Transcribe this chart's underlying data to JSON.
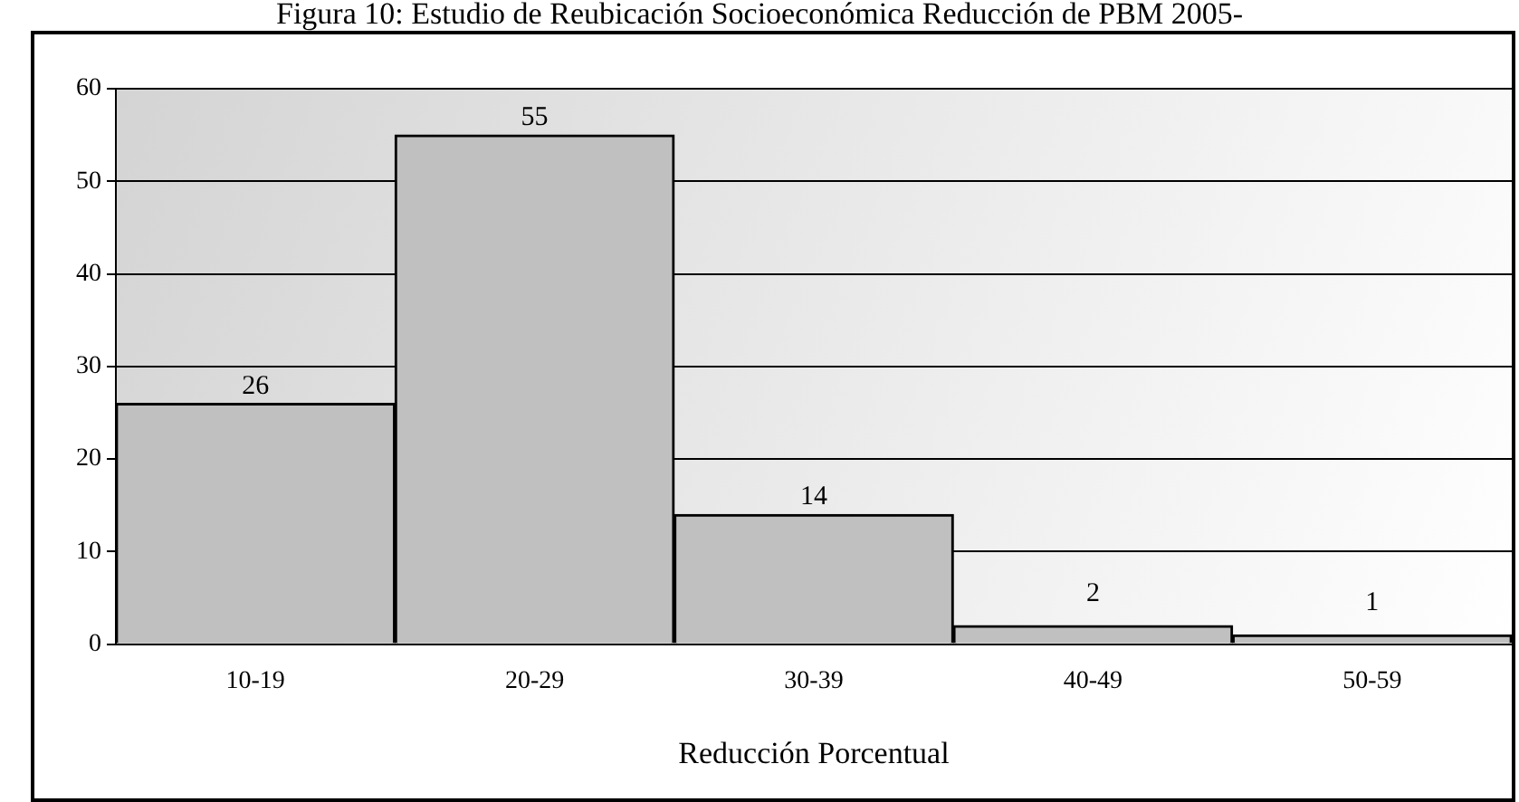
{
  "chart_data": {
    "type": "bar",
    "title": "Figura 10: Estudio de Reubicación Socioeconómica Reducción de PBM 2005-",
    "xlabel": "Reducción Porcentual",
    "categories": [
      "10-19",
      "20-29",
      "30-39",
      "40-49",
      "50-59"
    ],
    "values": [
      26,
      55,
      14,
      2,
      1
    ],
    "color": "#c0c0c0",
    "ylim": [
      0,
      60
    ],
    "yticks": [
      0,
      10,
      20,
      30,
      40,
      50,
      60
    ],
    "grid": "y",
    "data_labels": true
  }
}
